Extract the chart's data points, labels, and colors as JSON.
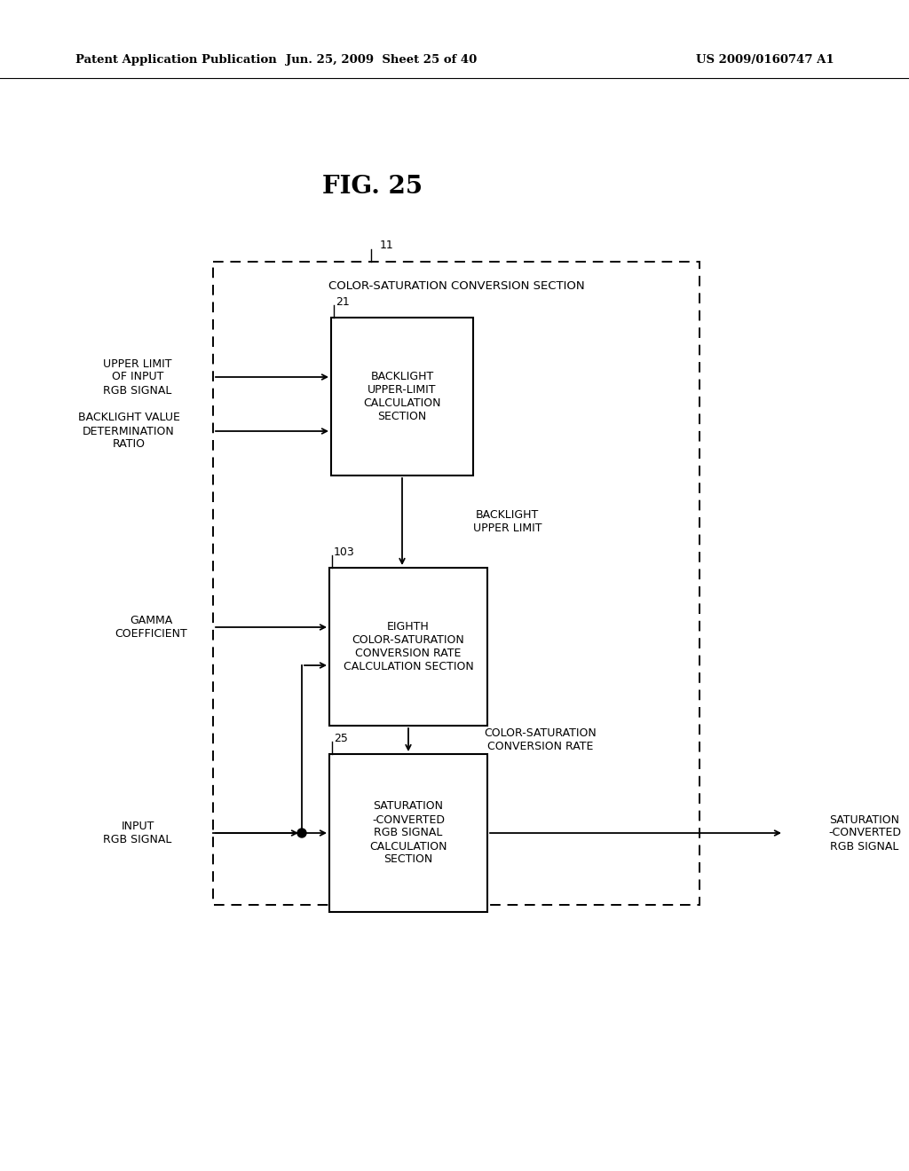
{
  "title": "FIG. 25",
  "header_left": "Patent Application Publication",
  "header_center": "Jun. 25, 2009  Sheet 25 of 40",
  "header_right": "US 2009/0160747 A1",
  "outer_box_label": "COLOR-SATURATION CONVERSION SECTION",
  "outer_box_label_id": "11",
  "box1_id": "21",
  "box1_lines": [
    "BACKLIGHT",
    "UPPER-LIMIT",
    "CALCULATION",
    "SECTION"
  ],
  "box2_id": "103",
  "box2_lines": [
    "EIGHTH",
    "COLOR-SATURATION",
    "CONVERSION RATE",
    "CALCULATION SECTION"
  ],
  "box3_id": "25",
  "box3_lines": [
    "SATURATION",
    "-CONVERTED",
    "RGB SIGNAL",
    "CALCULATION",
    "SECTION"
  ],
  "label_upper_limit": [
    "UPPER LIMIT",
    "OF INPUT",
    "RGB SIGNAL"
  ],
  "label_backlight_value": [
    "BACKLIGHT VALUE",
    "DETERMINATION",
    "RATIO"
  ],
  "label_backlight_upper_limit": [
    "BACKLIGHT",
    "UPPER LIMIT"
  ],
  "label_gamma": [
    "GAMMA",
    "COEFFICIENT"
  ],
  "label_color_sat_rate": [
    "COLOR-SATURATION",
    "CONVERSION RATE"
  ],
  "label_input_rgb": [
    "INPUT",
    "RGB SIGNAL"
  ],
  "label_output": [
    "SATURATION",
    "-CONVERTED",
    "RGB SIGNAL"
  ],
  "bg_color": "#ffffff",
  "box_color": "#000000",
  "text_color": "#000000"
}
